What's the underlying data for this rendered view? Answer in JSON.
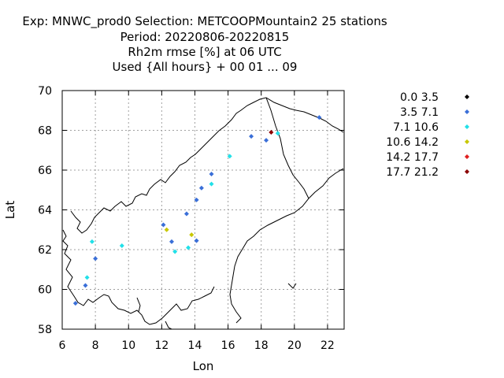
{
  "chart_data": {
    "type": "scatter",
    "title_lines": [
      "Exp: MNWC_prod0   Selection: METCOOPMountain2     25 stations",
      "Period: 20220806-20220815",
      "Rh2m rmse [%] at  06 UTC",
      "Used {All hours} + 00 01 ... 09"
    ],
    "xlabel": "Lon",
    "ylabel": "Lat",
    "xlim": [
      6,
      23
    ],
    "ylim": [
      58,
      70
    ],
    "xticks": [
      6,
      8,
      10,
      12,
      14,
      16,
      18,
      20,
      22
    ],
    "yticks": [
      58,
      60,
      62,
      64,
      66,
      68,
      70
    ],
    "grid": true,
    "legend_position": "right",
    "series": [
      {
        "name": "0.0 3.5",
        "color": "#000000",
        "points": []
      },
      {
        "name": "3.5 7.1",
        "color": "#3a6fd8",
        "points": [
          [
            6.8,
            59.3
          ],
          [
            7.4,
            60.2
          ],
          [
            8.0,
            61.55
          ],
          [
            12.1,
            63.25
          ],
          [
            12.6,
            62.4
          ],
          [
            13.5,
            63.8
          ],
          [
            14.1,
            62.45
          ],
          [
            14.1,
            64.5
          ],
          [
            14.4,
            65.1
          ],
          [
            15.0,
            65.8
          ],
          [
            17.4,
            67.7
          ],
          [
            18.3,
            67.5
          ],
          [
            21.5,
            68.65
          ]
        ]
      },
      {
        "name": "7.1 10.6",
        "color": "#22e0e8",
        "points": [
          [
            7.5,
            60.6
          ],
          [
            7.8,
            62.4
          ],
          [
            9.6,
            62.2
          ],
          [
            12.8,
            61.9
          ],
          [
            13.6,
            62.1
          ],
          [
            15.0,
            65.3
          ],
          [
            16.1,
            66.7
          ],
          [
            19.0,
            67.85
          ]
        ]
      },
      {
        "name": "10.6 14.2",
        "color": "#c8c800",
        "points": [
          [
            12.3,
            63.0
          ],
          [
            13.8,
            62.75
          ]
        ]
      },
      {
        "name": "14.2 17.7",
        "color": "#e02020",
        "points": []
      },
      {
        "name": "17.7 21.2",
        "color": "#8b0000",
        "points": [
          [
            18.6,
            67.9
          ]
        ]
      }
    ]
  }
}
